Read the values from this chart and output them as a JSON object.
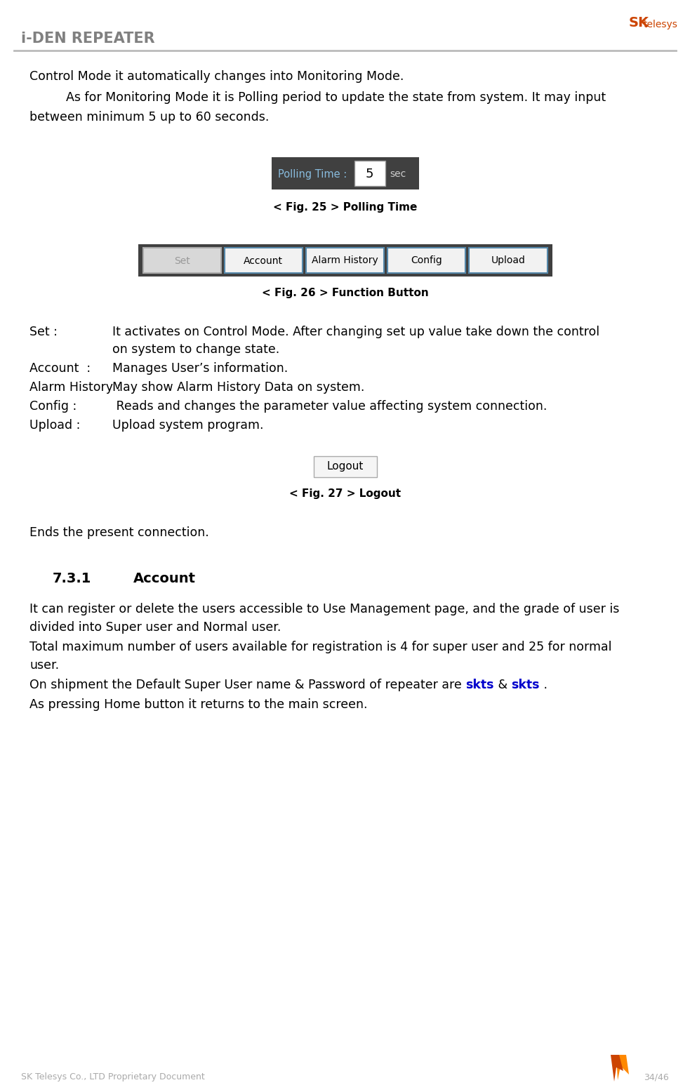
{
  "title": "i-DEN REPEATER",
  "title_color": "#808080",
  "footer_left": "SK Telesys Co., LTD Proprietary Document",
  "footer_right": "34/46",
  "bg_color": "#ffffff",
  "paragraph1": "Control Mode it automatically changes into Monitoring Mode.",
  "paragraph2a": "    As for Monitoring Mode it is Polling period to update the state from system. It may input",
  "paragraph2b": "between minimum 5 up to 60 seconds.",
  "fig25_caption": "< Fig. 25 > Polling Time",
  "fig26_caption": "< Fig. 26 > Function Button",
  "fig27_caption": "< Fig. 27 > Logout",
  "polling_bg": "#404040",
  "polling_label": "Polling Time : ",
  "polling_value": "5",
  "polling_unit": "sec",
  "btn_bg": "#404040",
  "btn_labels": [
    "Set",
    "Account",
    "Alarm History",
    "Config",
    "Upload"
  ],
  "logout_btn_label": "Logout",
  "set_label": "Set :",
  "set_desc1": "It activates on Control Mode. After changing set up value take down the control",
  "set_desc2": "on system to change state.",
  "account_label": "Account  :",
  "account_desc": "Manages User’s information.",
  "alarm_label": "Alarm History :",
  "alarm_desc": "May show Alarm History Data on system.",
  "config_label": "Config :",
  "config_desc": " Reads and changes the parameter value affecting system connection.",
  "upload_label": "Upload :",
  "upload_desc": "Upload system program.",
  "ends_text": "Ends the present connection.",
  "section_num": "7.3.1",
  "section_title": "Account",
  "body1a": "It can register or delete the users accessible to Use Management page, and the grade of user is",
  "body1b": "divided into Super user and Normal user.",
  "body2a": "Total maximum number of users available for registration is 4 for super user and 25 for normal",
  "body2b": "user.",
  "body3_pre": "On shipment the Default Super User name & Password of repeater are ",
  "body3_skts1": "skts",
  "body3_mid": " & ",
  "body3_skts2": "skts",
  "body3_post": " .",
  "body4": "As pressing Home button it returns to the main screen.",
  "skts_color": "#0000cc"
}
